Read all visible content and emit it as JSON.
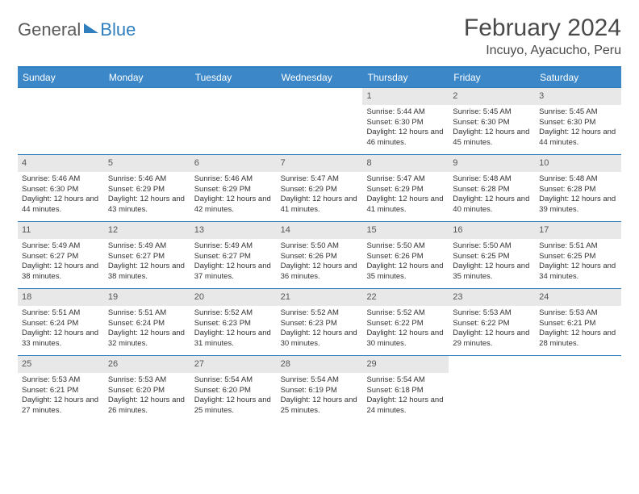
{
  "brand": {
    "main": "General",
    "sub": "Blue"
  },
  "title": "February 2024",
  "location": "Incuyo, Ayacucho, Peru",
  "dayNames": [
    "Sunday",
    "Monday",
    "Tuesday",
    "Wednesday",
    "Thursday",
    "Friday",
    "Saturday"
  ],
  "colors": {
    "headerBar": "#3b87c8",
    "accent": "#2f7fbf",
    "dayShade": "#e8e8e8",
    "text": "#333333",
    "titleText": "#4a4a4a"
  },
  "startWeekday": 4,
  "days": [
    {
      "n": 1,
      "sunrise": "5:44 AM",
      "sunset": "6:30 PM",
      "daylight": "12 hours and 46 minutes."
    },
    {
      "n": 2,
      "sunrise": "5:45 AM",
      "sunset": "6:30 PM",
      "daylight": "12 hours and 45 minutes."
    },
    {
      "n": 3,
      "sunrise": "5:45 AM",
      "sunset": "6:30 PM",
      "daylight": "12 hours and 44 minutes."
    },
    {
      "n": 4,
      "sunrise": "5:46 AM",
      "sunset": "6:30 PM",
      "daylight": "12 hours and 44 minutes."
    },
    {
      "n": 5,
      "sunrise": "5:46 AM",
      "sunset": "6:29 PM",
      "daylight": "12 hours and 43 minutes."
    },
    {
      "n": 6,
      "sunrise": "5:46 AM",
      "sunset": "6:29 PM",
      "daylight": "12 hours and 42 minutes."
    },
    {
      "n": 7,
      "sunrise": "5:47 AM",
      "sunset": "6:29 PM",
      "daylight": "12 hours and 41 minutes."
    },
    {
      "n": 8,
      "sunrise": "5:47 AM",
      "sunset": "6:29 PM",
      "daylight": "12 hours and 41 minutes."
    },
    {
      "n": 9,
      "sunrise": "5:48 AM",
      "sunset": "6:28 PM",
      "daylight": "12 hours and 40 minutes."
    },
    {
      "n": 10,
      "sunrise": "5:48 AM",
      "sunset": "6:28 PM",
      "daylight": "12 hours and 39 minutes."
    },
    {
      "n": 11,
      "sunrise": "5:49 AM",
      "sunset": "6:27 PM",
      "daylight": "12 hours and 38 minutes."
    },
    {
      "n": 12,
      "sunrise": "5:49 AM",
      "sunset": "6:27 PM",
      "daylight": "12 hours and 38 minutes."
    },
    {
      "n": 13,
      "sunrise": "5:49 AM",
      "sunset": "6:27 PM",
      "daylight": "12 hours and 37 minutes."
    },
    {
      "n": 14,
      "sunrise": "5:50 AM",
      "sunset": "6:26 PM",
      "daylight": "12 hours and 36 minutes."
    },
    {
      "n": 15,
      "sunrise": "5:50 AM",
      "sunset": "6:26 PM",
      "daylight": "12 hours and 35 minutes."
    },
    {
      "n": 16,
      "sunrise": "5:50 AM",
      "sunset": "6:25 PM",
      "daylight": "12 hours and 35 minutes."
    },
    {
      "n": 17,
      "sunrise": "5:51 AM",
      "sunset": "6:25 PM",
      "daylight": "12 hours and 34 minutes."
    },
    {
      "n": 18,
      "sunrise": "5:51 AM",
      "sunset": "6:24 PM",
      "daylight": "12 hours and 33 minutes."
    },
    {
      "n": 19,
      "sunrise": "5:51 AM",
      "sunset": "6:24 PM",
      "daylight": "12 hours and 32 minutes."
    },
    {
      "n": 20,
      "sunrise": "5:52 AM",
      "sunset": "6:23 PM",
      "daylight": "12 hours and 31 minutes."
    },
    {
      "n": 21,
      "sunrise": "5:52 AM",
      "sunset": "6:23 PM",
      "daylight": "12 hours and 30 minutes."
    },
    {
      "n": 22,
      "sunrise": "5:52 AM",
      "sunset": "6:22 PM",
      "daylight": "12 hours and 30 minutes."
    },
    {
      "n": 23,
      "sunrise": "5:53 AM",
      "sunset": "6:22 PM",
      "daylight": "12 hours and 29 minutes."
    },
    {
      "n": 24,
      "sunrise": "5:53 AM",
      "sunset": "6:21 PM",
      "daylight": "12 hours and 28 minutes."
    },
    {
      "n": 25,
      "sunrise": "5:53 AM",
      "sunset": "6:21 PM",
      "daylight": "12 hours and 27 minutes."
    },
    {
      "n": 26,
      "sunrise": "5:53 AM",
      "sunset": "6:20 PM",
      "daylight": "12 hours and 26 minutes."
    },
    {
      "n": 27,
      "sunrise": "5:54 AM",
      "sunset": "6:20 PM",
      "daylight": "12 hours and 25 minutes."
    },
    {
      "n": 28,
      "sunrise": "5:54 AM",
      "sunset": "6:19 PM",
      "daylight": "12 hours and 25 minutes."
    },
    {
      "n": 29,
      "sunrise": "5:54 AM",
      "sunset": "6:18 PM",
      "daylight": "12 hours and 24 minutes."
    }
  ],
  "labels": {
    "sunrise": "Sunrise:",
    "sunset": "Sunset:",
    "daylight": "Daylight:"
  }
}
